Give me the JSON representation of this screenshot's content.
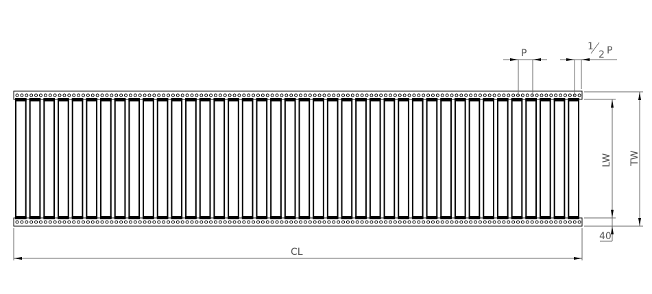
{
  "labels": {
    "pitch": "P",
    "half_pitch_num": "1",
    "half_pitch_den": "2",
    "half_pitch_p": "P",
    "total_width": "TW",
    "roller_width": "LW",
    "offset": "40",
    "conveyor_length": "CL"
  },
  "roller_count": 40,
  "colors": {
    "line": "#000000",
    "dimension": "#555555"
  }
}
